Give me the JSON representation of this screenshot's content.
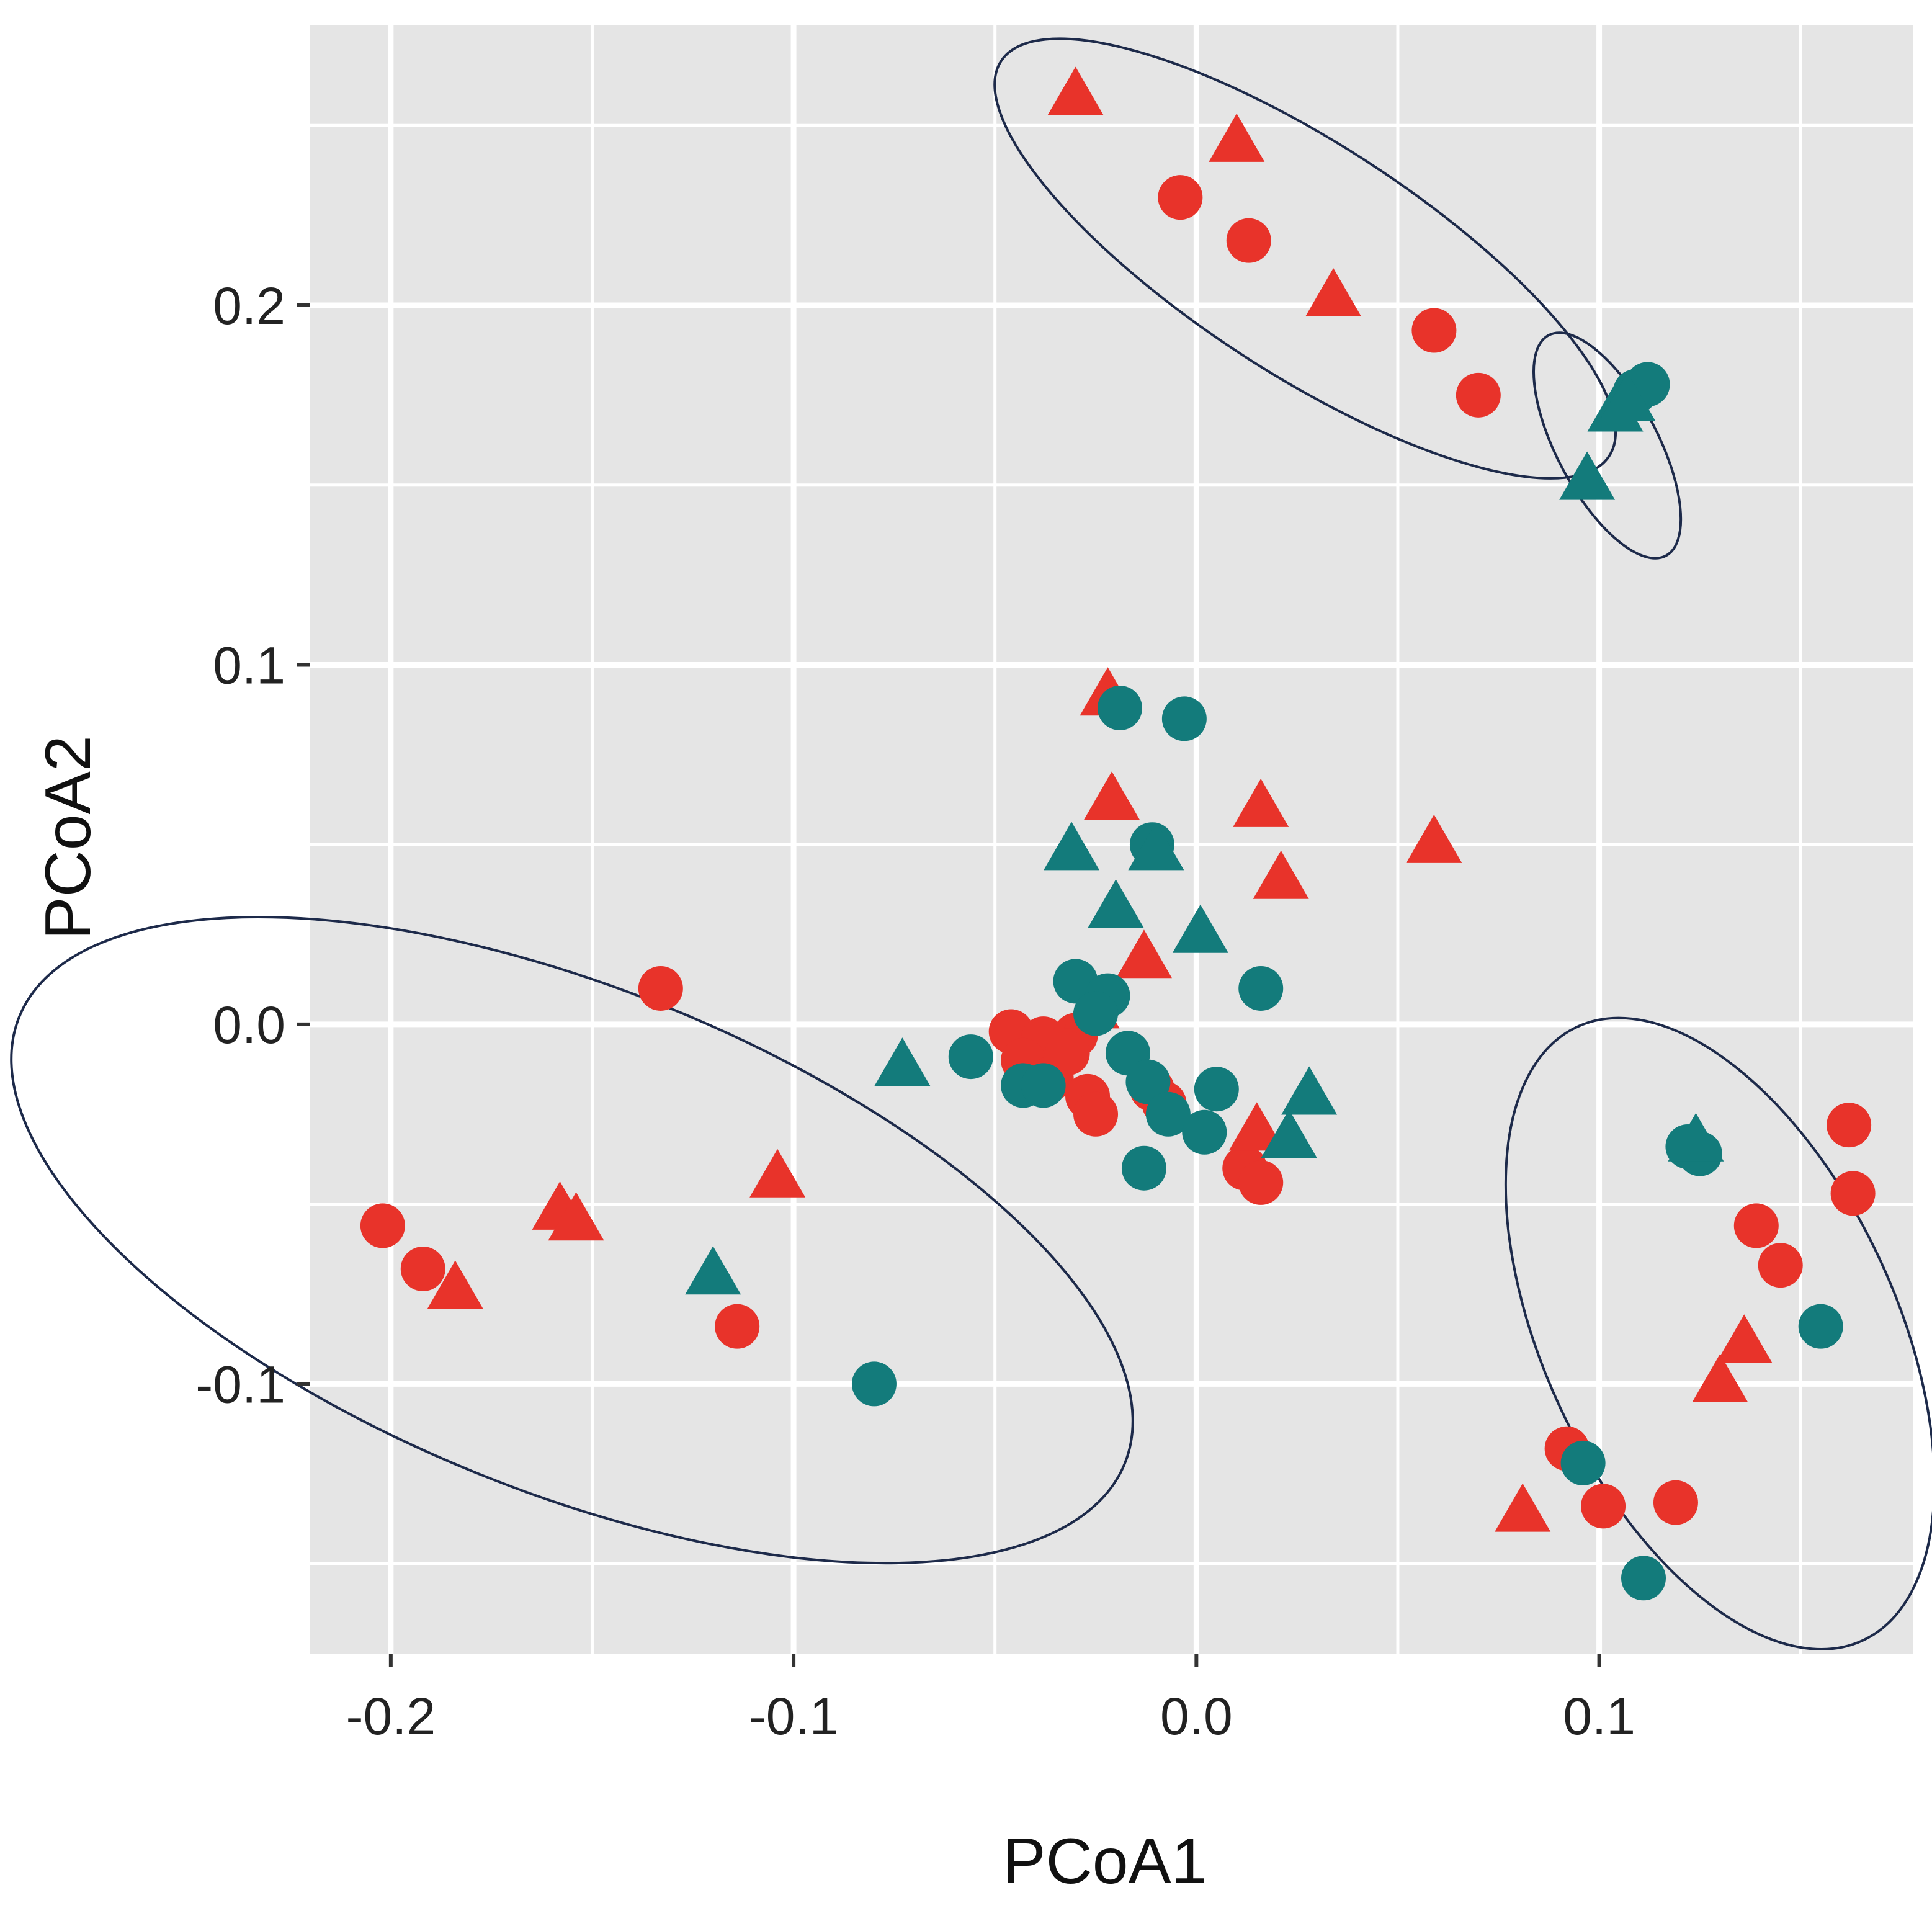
{
  "chart_data": {
    "type": "scatter",
    "title": "",
    "xlabel": "PCoA1",
    "ylabel": "PCoA2",
    "xlim": [
      -0.22,
      0.178
    ],
    "ylim": [
      -0.175,
      0.278
    ],
    "x_ticks": [
      -0.2,
      -0.1,
      0.0,
      0.1
    ],
    "x_tick_labels": [
      "-0.2",
      "-0.1",
      "0.0",
      "0.1"
    ],
    "y_ticks": [
      -0.1,
      0.0,
      0.1,
      0.2
    ],
    "y_tick_labels": [
      "-0.1",
      "0.0",
      "0.1",
      "0.2"
    ],
    "grid": true,
    "legend": "none",
    "colors": {
      "red": "#e8332a",
      "teal": "#137b7b",
      "panel": "#e5e5e5",
      "grid": "#ffffff",
      "ellipse": "#1d2a4a"
    },
    "series": [
      {
        "name": "red-circle",
        "color": "#e8332a",
        "marker": "circle",
        "points": [
          [
            -0.004,
            0.23
          ],
          [
            0.013,
            0.218
          ],
          [
            0.059,
            0.193
          ],
          [
            0.07,
            0.175
          ],
          [
            -0.133,
            0.01
          ],
          [
            -0.202,
            -0.056
          ],
          [
            -0.192,
            -0.068
          ],
          [
            -0.114,
            -0.084
          ],
          [
            -0.046,
            -0.002
          ],
          [
            -0.038,
            -0.004
          ],
          [
            -0.03,
            -0.003
          ],
          [
            -0.043,
            -0.01
          ],
          [
            -0.036,
            -0.015
          ],
          [
            -0.032,
            -0.008
          ],
          [
            -0.027,
            -0.02
          ],
          [
            -0.025,
            -0.025
          ],
          [
            -0.011,
            -0.018
          ],
          [
            0.012,
            -0.04
          ],
          [
            0.016,
            -0.044
          ],
          [
            -0.008,
            -0.022
          ],
          [
            0.162,
            -0.028
          ],
          [
            0.163,
            -0.047
          ],
          [
            0.139,
            -0.056
          ],
          [
            0.145,
            -0.067
          ],
          [
            0.092,
            -0.118
          ],
          [
            0.101,
            -0.134
          ],
          [
            0.119,
            -0.133
          ]
        ]
      },
      {
        "name": "red-triangle",
        "color": "#e8332a",
        "marker": "triangle",
        "points": [
          [
            -0.03,
            0.258
          ],
          [
            0.01,
            0.245
          ],
          [
            0.034,
            0.202
          ],
          [
            -0.022,
            0.091
          ],
          [
            -0.021,
            0.062
          ],
          [
            0.016,
            0.06
          ],
          [
            0.021,
            0.04
          ],
          [
            0.059,
            0.05
          ],
          [
            -0.013,
            0.018
          ],
          [
            -0.026,
            0.004
          ],
          [
            -0.158,
            -0.052
          ],
          [
            -0.154,
            -0.055
          ],
          [
            -0.104,
            -0.043
          ],
          [
            -0.184,
            -0.074
          ],
          [
            0.015,
            -0.03
          ],
          [
            0.136,
            -0.089
          ],
          [
            0.13,
            -0.1
          ],
          [
            0.081,
            -0.136
          ]
        ]
      },
      {
        "name": "teal-circle",
        "color": "#137b7b",
        "marker": "circle",
        "points": [
          [
            0.109,
            0.176
          ],
          [
            0.112,
            0.178
          ],
          [
            -0.019,
            0.088
          ],
          [
            -0.003,
            0.085
          ],
          [
            -0.011,
            0.05
          ],
          [
            -0.03,
            0.012
          ],
          [
            -0.022,
            0.008
          ],
          [
            -0.025,
            0.003
          ],
          [
            -0.017,
            -0.008
          ],
          [
            -0.012,
            -0.016
          ],
          [
            -0.056,
            -0.009
          ],
          [
            -0.043,
            -0.017
          ],
          [
            -0.007,
            -0.025
          ],
          [
            0.005,
            -0.018
          ],
          [
            0.002,
            -0.03
          ],
          [
            -0.013,
            -0.04
          ],
          [
            0.016,
            0.01
          ],
          [
            -0.038,
            -0.017
          ],
          [
            0.122,
            -0.034
          ],
          [
            0.125,
            -0.036
          ],
          [
            0.155,
            -0.084
          ],
          [
            0.096,
            -0.122
          ],
          [
            0.111,
            -0.154
          ],
          [
            -0.08,
            -0.1
          ]
        ]
      },
      {
        "name": "teal-triangle",
        "color": "#137b7b",
        "marker": "triangle",
        "points": [
          [
            0.104,
            0.17
          ],
          [
            0.097,
            0.151
          ],
          [
            0.107,
            0.173
          ],
          [
            -0.031,
            0.048
          ],
          [
            -0.02,
            0.032
          ],
          [
            0.001,
            0.025
          ],
          [
            -0.01,
            0.048
          ],
          [
            -0.073,
            -0.012
          ],
          [
            0.028,
            -0.02
          ],
          [
            0.023,
            -0.032
          ],
          [
            -0.12,
            -0.07
          ],
          [
            0.124,
            -0.033
          ]
        ]
      }
    ],
    "ellipses": [
      {
        "cx": 0.027,
        "cy": 0.213,
        "rx": 0.09,
        "ry": 0.032,
        "angle_deg": 33
      },
      {
        "cx": 0.102,
        "cy": 0.161,
        "rx": 0.031,
        "ry": 0.014,
        "angle_deg": 62
      },
      {
        "cx": -0.155,
        "cy": -0.06,
        "rx": 0.148,
        "ry": 0.07,
        "angle_deg": 22
      },
      {
        "cx": 0.13,
        "cy": -0.086,
        "rx": 0.084,
        "ry": 0.049,
        "angle_deg": 65
      }
    ]
  }
}
